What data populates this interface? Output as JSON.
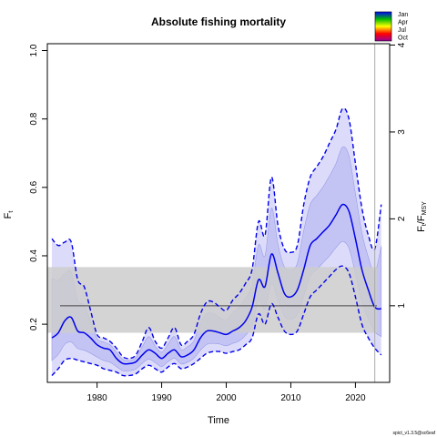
{
  "chart_data": {
    "type": "line",
    "title": "Absolute fishing mortality",
    "xlabel": "Time",
    "ylabel": "F",
    "ylabel_sub": "t",
    "y2label": "F",
    "y2label_sub1": "t",
    "y2label_sep": "/F",
    "y2label_sub2": "MSY",
    "xlim": [
      1972.3,
      2025.3
    ],
    "ylim": [
      0.03,
      1.02
    ],
    "x_ticks": [
      1980,
      1990,
      2000,
      2010,
      2020
    ],
    "y_ticks": [
      0.2,
      0.4,
      0.6,
      0.8,
      1.0
    ],
    "y_tick_labels": [
      "0.2",
      "0.4",
      "0.6",
      "0.8",
      "1.0"
    ],
    "y2_ticks": [
      1,
      2,
      3,
      4
    ],
    "y2_scale": 0.254,
    "fmsy": 0.254,
    "fmsy_ci": [
      0.175,
      0.367
    ],
    "vline_x": 2023,
    "grid": false,
    "legend": {
      "placement": "top-right",
      "labels": [
        "Jan",
        "Apr",
        "Jul",
        "Oct"
      ],
      "colors": [
        "#0000ff",
        "#00bb00",
        "#ffff00",
        "#ff0000",
        "#990099"
      ]
    },
    "footnote": "spict_v1.3.5@sc6eaf",
    "colors": {
      "estimate": "#0000ee",
      "ci_fill": "#dcdcfa",
      "ci_inner": "#b4b4f0",
      "fmsy_band": "#cccccc",
      "fmsy_line": "#444444",
      "vline": "#aaaaaa"
    },
    "series": [
      {
        "role": "estimate",
        "x": [
          1973,
          1974,
          1975,
          1976,
          1977,
          1978,
          1979,
          1980,
          1981,
          1982,
          1983,
          1984,
          1985,
          1986,
          1987,
          1988,
          1989,
          1990,
          1991,
          1992,
          1993,
          1994,
          1995,
          1996,
          1997,
          1998,
          1999,
          2000,
          2001,
          2002,
          2003,
          2004,
          2005,
          2006,
          2007,
          2008,
          2009,
          2010,
          2011,
          2012,
          2013,
          2014,
          2015,
          2016,
          2017,
          2018,
          2019,
          2020,
          2021,
          2022,
          2023,
          2024
        ],
        "y": [
          0.16,
          0.175,
          0.21,
          0.22,
          0.18,
          0.175,
          0.16,
          0.14,
          0.13,
          0.125,
          0.1,
          0.085,
          0.085,
          0.09,
          0.11,
          0.125,
          0.115,
          0.1,
          0.115,
          0.125,
          0.105,
          0.11,
          0.125,
          0.16,
          0.18,
          0.18,
          0.175,
          0.17,
          0.18,
          0.19,
          0.21,
          0.25,
          0.33,
          0.31,
          0.405,
          0.35,
          0.29,
          0.28,
          0.3,
          0.36,
          0.43,
          0.45,
          0.47,
          0.49,
          0.52,
          0.55,
          0.53,
          0.45,
          0.36,
          0.3,
          0.25,
          0.245
        ]
      },
      {
        "role": "upper_ci",
        "x": [
          1973,
          1974,
          1975,
          1976,
          1977,
          1978,
          1979,
          1980,
          1981,
          1982,
          1983,
          1984,
          1985,
          1986,
          1987,
          1988,
          1989,
          1990,
          1991,
          1992,
          1993,
          1994,
          1995,
          1996,
          1997,
          1998,
          1999,
          2000,
          2001,
          2002,
          2003,
          2004,
          2005,
          2006,
          2007,
          2008,
          2009,
          2010,
          2011,
          2012,
          2013,
          2014,
          2015,
          2016,
          2017,
          2018,
          2019,
          2020,
          2021,
          2022,
          2023,
          2024
        ],
        "y": [
          0.45,
          0.43,
          0.44,
          0.44,
          0.33,
          0.31,
          0.24,
          0.17,
          0.16,
          0.15,
          0.13,
          0.105,
          0.1,
          0.11,
          0.15,
          0.19,
          0.15,
          0.13,
          0.16,
          0.19,
          0.14,
          0.15,
          0.17,
          0.23,
          0.265,
          0.265,
          0.25,
          0.24,
          0.27,
          0.29,
          0.32,
          0.36,
          0.5,
          0.46,
          0.63,
          0.49,
          0.42,
          0.41,
          0.43,
          0.55,
          0.63,
          0.66,
          0.69,
          0.73,
          0.77,
          0.83,
          0.8,
          0.67,
          0.54,
          0.46,
          0.42,
          0.55
        ]
      },
      {
        "role": "lower_ci",
        "x": [
          1973,
          1974,
          1975,
          1976,
          1977,
          1978,
          1979,
          1980,
          1981,
          1982,
          1983,
          1984,
          1985,
          1986,
          1987,
          1988,
          1989,
          1990,
          1991,
          1992,
          1993,
          1994,
          1995,
          1996,
          1997,
          1998,
          1999,
          2000,
          2001,
          2002,
          2003,
          2004,
          2005,
          2006,
          2007,
          2008,
          2009,
          2010,
          2011,
          2012,
          2013,
          2014,
          2015,
          2016,
          2017,
          2018,
          2019,
          2020,
          2021,
          2022,
          2023,
          2024
        ],
        "y": [
          0.05,
          0.07,
          0.095,
          0.1,
          0.095,
          0.09,
          0.085,
          0.08,
          0.07,
          0.065,
          0.06,
          0.05,
          0.05,
          0.055,
          0.07,
          0.08,
          0.07,
          0.06,
          0.075,
          0.085,
          0.07,
          0.075,
          0.085,
          0.1,
          0.115,
          0.12,
          0.12,
          0.115,
          0.12,
          0.125,
          0.14,
          0.16,
          0.23,
          0.2,
          0.26,
          0.22,
          0.18,
          0.17,
          0.18,
          0.23,
          0.28,
          0.3,
          0.32,
          0.34,
          0.36,
          0.37,
          0.35,
          0.28,
          0.2,
          0.16,
          0.13,
          0.11
        ]
      }
    ]
  }
}
